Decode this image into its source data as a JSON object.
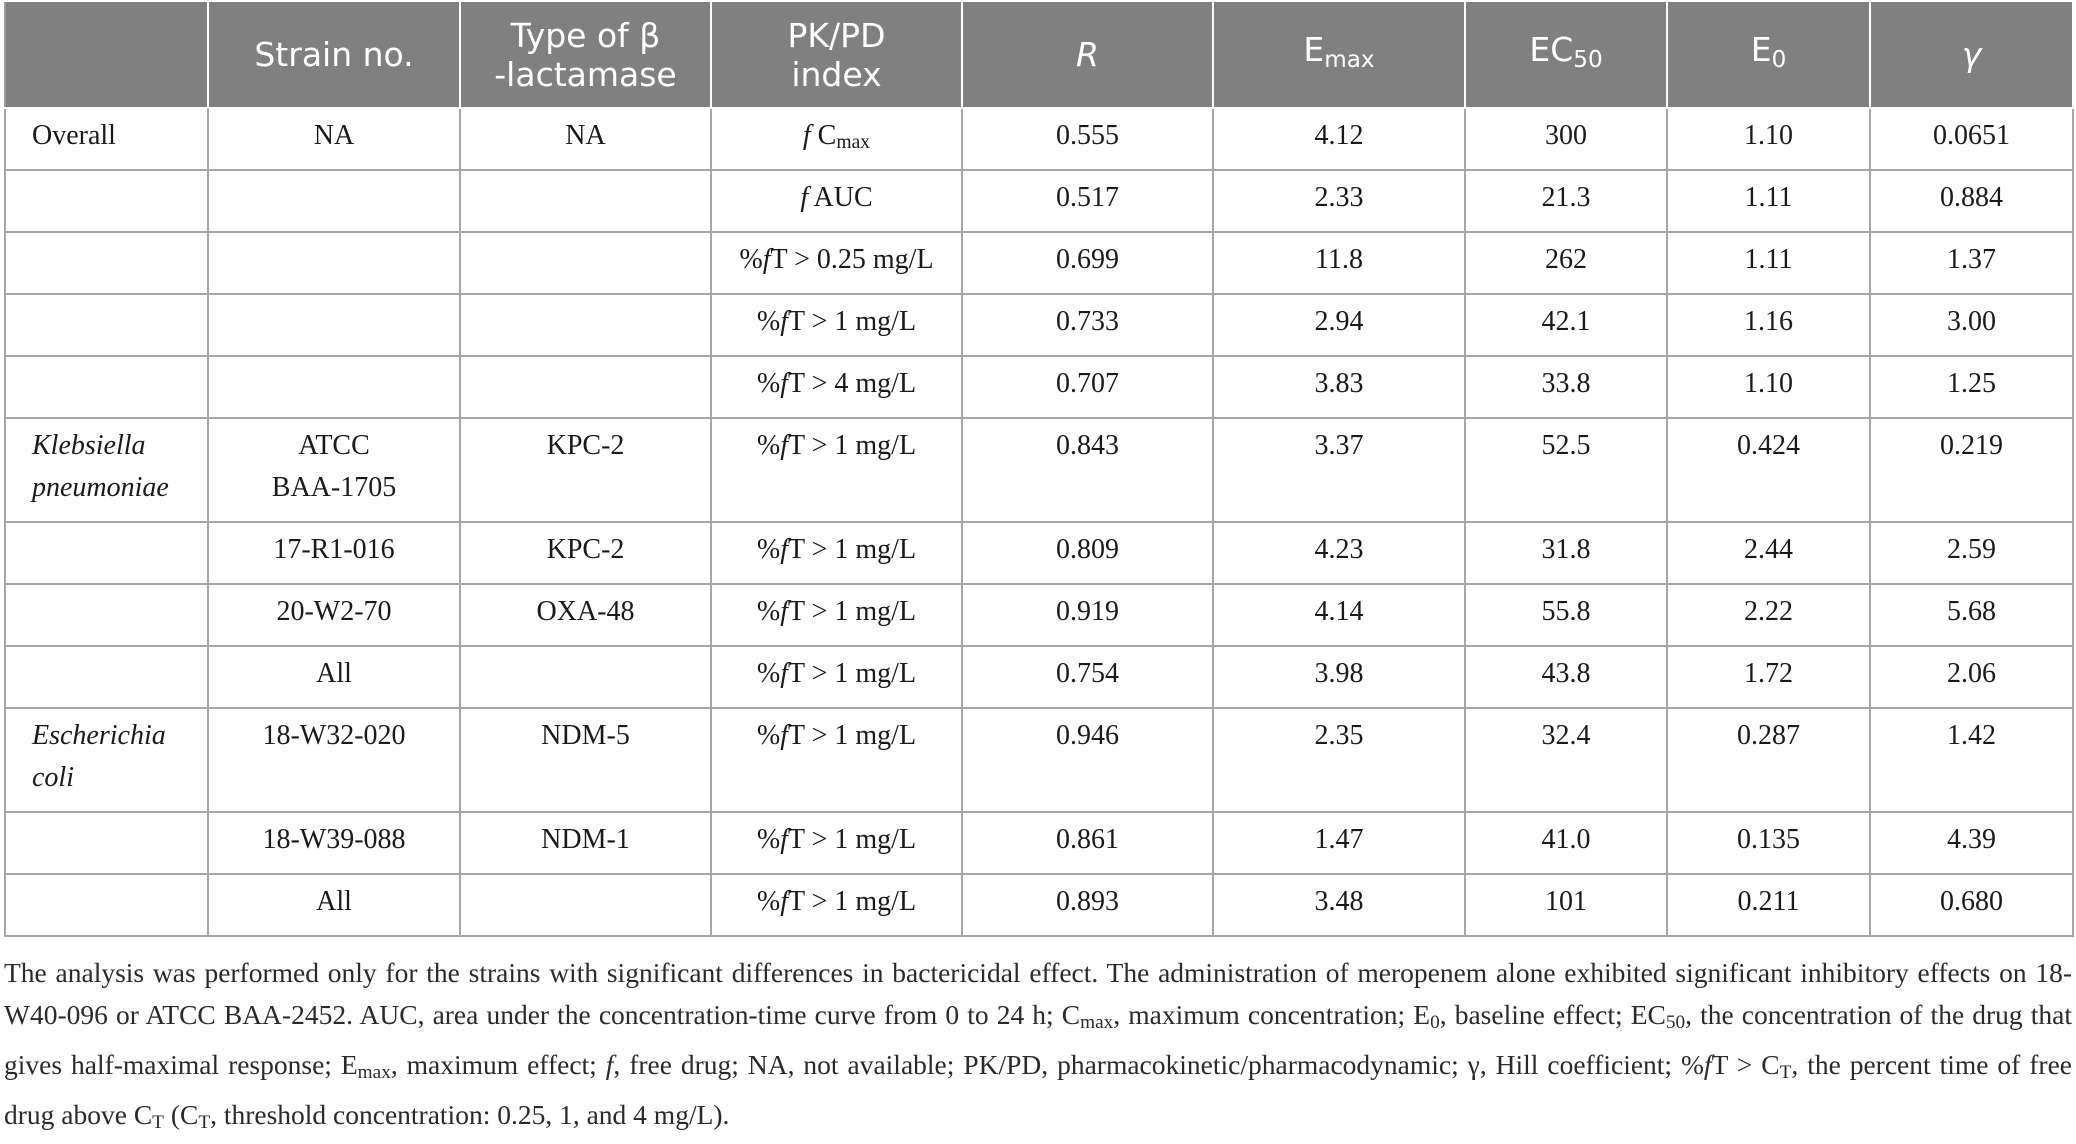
{
  "table": {
    "headers": {
      "blank": "",
      "strain": "Strain no.",
      "beta_line1": "Type of β",
      "beta_line2": "-lactamase",
      "pkpd_line1": "PK/PD",
      "pkpd_line2": "index",
      "r": "R",
      "emax_base": "E",
      "emax_sub": "max",
      "ec50_base": "EC",
      "ec50_sub": "50",
      "e0_base": "E",
      "e0_sub": "0",
      "gamma": "γ"
    },
    "rows": [
      {
        "group": "Overall",
        "group_line2": "",
        "strain": "NA",
        "strain_line2": "",
        "beta": "NA",
        "idx_a": "f",
        "idx_b": " C",
        "idx_sub": "max",
        "idx_c": "",
        "r": "0.555",
        "emax": "4.12",
        "ec50": "300",
        "e0": "1.10",
        "gamma": "0.0651"
      },
      {
        "group": "",
        "group_line2": "",
        "strain": "",
        "strain_line2": "",
        "beta": "",
        "idx_a": "f",
        "idx_b": " AUC",
        "idx_sub": "",
        "idx_c": "",
        "r": "0.517",
        "emax": "2.33",
        "ec50": "21.3",
        "e0": "1.11",
        "gamma": "0.884"
      },
      {
        "group": "",
        "group_line2": "",
        "strain": "",
        "strain_line2": "",
        "beta": "",
        "idx_a": "%",
        "idx_b": "f",
        "idx_sub": "",
        "idx_c": "T > 0.25 mg/L",
        "r": "0.699",
        "emax": "11.8",
        "ec50": "262",
        "e0": "1.11",
        "gamma": "1.37"
      },
      {
        "group": "",
        "group_line2": "",
        "strain": "",
        "strain_line2": "",
        "beta": "",
        "idx_a": "%",
        "idx_b": "f",
        "idx_sub": "",
        "idx_c": "T > 1 mg/L",
        "r": "0.733",
        "emax": "2.94",
        "ec50": "42.1",
        "e0": "1.16",
        "gamma": "3.00"
      },
      {
        "group": "",
        "group_line2": "",
        "strain": "",
        "strain_line2": "",
        "beta": "",
        "idx_a": "%",
        "idx_b": "f",
        "idx_sub": "",
        "idx_c": "T > 4 mg/L",
        "r": "0.707",
        "emax": "3.83",
        "ec50": "33.8",
        "e0": "1.10",
        "gamma": "1.25"
      },
      {
        "group": "Klebsiella",
        "group_line2": "pneumoniae",
        "strain": "ATCC",
        "strain_line2": "BAA-1705",
        "beta": "KPC-2",
        "idx_a": "%",
        "idx_b": "f",
        "idx_sub": "",
        "idx_c": "T > 1 mg/L",
        "r": "0.843",
        "emax": "3.37",
        "ec50": "52.5",
        "e0": "0.424",
        "gamma": "0.219"
      },
      {
        "group": "",
        "group_line2": "",
        "strain": "17-R1-016",
        "strain_line2": "",
        "beta": "KPC-2",
        "idx_a": "%",
        "idx_b": "f",
        "idx_sub": "",
        "idx_c": "T > 1 mg/L",
        "r": "0.809",
        "emax": "4.23",
        "ec50": "31.8",
        "e0": "2.44",
        "gamma": "2.59"
      },
      {
        "group": "",
        "group_line2": "",
        "strain": "20-W2-70",
        "strain_line2": "",
        "beta": "OXA-48",
        "idx_a": "%",
        "idx_b": "f",
        "idx_sub": "",
        "idx_c": "T > 1 mg/L",
        "r": "0.919",
        "emax": "4.14",
        "ec50": "55.8",
        "e0": "2.22",
        "gamma": "5.68"
      },
      {
        "group": "",
        "group_line2": "",
        "strain": "All",
        "strain_line2": "",
        "beta": "",
        "idx_a": "%",
        "idx_b": "f",
        "idx_sub": "",
        "idx_c": "T > 1 mg/L",
        "r": "0.754",
        "emax": "3.98",
        "ec50": "43.8",
        "e0": "1.72",
        "gamma": "2.06"
      },
      {
        "group": "Escherichia",
        "group_line2": "coli",
        "strain": "18-W32-020",
        "strain_line2": "",
        "beta": "NDM-5",
        "idx_a": "%",
        "idx_b": "f",
        "idx_sub": "",
        "idx_c": "T > 1 mg/L",
        "r": "0.946",
        "emax": "2.35",
        "ec50": "32.4",
        "e0": "0.287",
        "gamma": "1.42"
      },
      {
        "group": "",
        "group_line2": "",
        "strain": "18-W39-088",
        "strain_line2": "",
        "beta": "NDM-1",
        "idx_a": "%",
        "idx_b": "f",
        "idx_sub": "",
        "idx_c": "T > 1 mg/L",
        "r": "0.861",
        "emax": "1.47",
        "ec50": "41.0",
        "e0": "0.135",
        "gamma": "4.39"
      },
      {
        "group": "",
        "group_line2": "",
        "strain": "All",
        "strain_line2": "",
        "beta": "",
        "idx_a": "%",
        "idx_b": "f",
        "idx_sub": "",
        "idx_c": "T > 1 mg/L",
        "r": "0.893",
        "emax": "3.48",
        "ec50": "101",
        "e0": "0.211",
        "gamma": "0.680"
      }
    ]
  },
  "footnote": {
    "p1": "The analysis was performed only for the strains with significant differences in bactericidal effect. The administration of meropenem alone exhibited significant inhibitory effects on 18-W40-096 or ATCC BAA-2452. AUC, area under the concentration-time curve from 0 to 24 h; C",
    "s1": "max",
    "p2": ", maximum concentration; E",
    "s2": "0",
    "p3": ", baseline effect; EC",
    "s3": "50",
    "p4": ", the concentration of the drug that gives half-maximal response; E",
    "s4": "max",
    "p5": ", maximum effect; ",
    "i1": "f",
    "p6": ", free drug; NA, not available; PK/PD, pharmacokinetic/pharmacodynamic; γ, Hill coefficient; %",
    "i2": "f",
    "p7": "T > C",
    "s5": "T",
    "p8": ", the percent time of free drug above C",
    "s6": "T",
    "p9": " (C",
    "s7": "T",
    "p10": ", threshold concentration: 0.25, 1, and 4 mg/L)."
  }
}
